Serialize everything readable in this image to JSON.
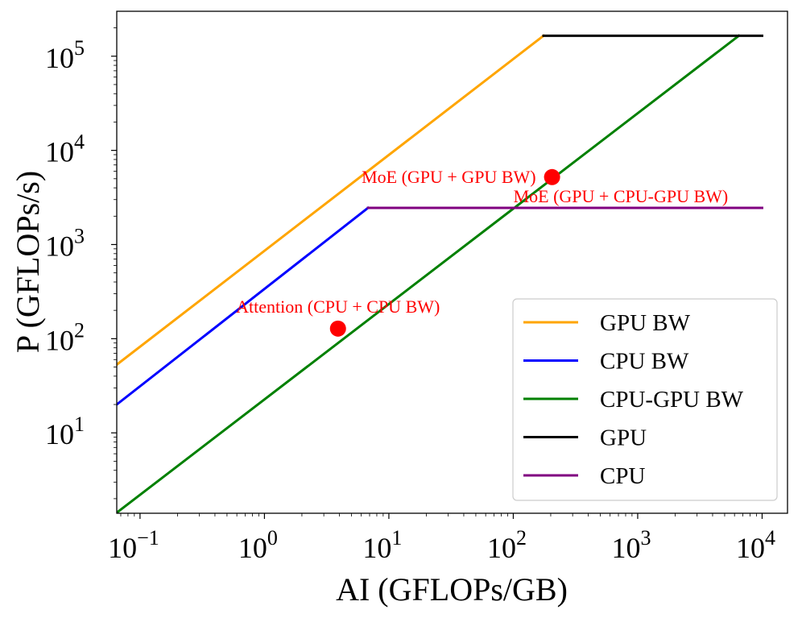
{
  "chart_data": {
    "type": "line",
    "x_scale": "log",
    "y_scale": "log",
    "xlabel": "AI (GFLOPs/GB)",
    "ylabel": "P (GFLOPs/s)",
    "xlim": [
      0.065,
      16000
    ],
    "ylim": [
      1.4,
      300000
    ],
    "x_ticks": [
      {
        "value": 0.1,
        "base": "10",
        "exp": "−1"
      },
      {
        "value": 1,
        "base": "10",
        "exp": "0"
      },
      {
        "value": 10,
        "base": "10",
        "exp": "1"
      },
      {
        "value": 100,
        "base": "10",
        "exp": "2"
      },
      {
        "value": 1000,
        "base": "10",
        "exp": "3"
      },
      {
        "value": 10000,
        "base": "10",
        "exp": "4"
      }
    ],
    "y_ticks": [
      {
        "value": 10,
        "base": "10",
        "exp": "1"
      },
      {
        "value": 100,
        "base": "10",
        "exp": "2"
      },
      {
        "value": 1000,
        "base": "10",
        "exp": "3"
      },
      {
        "value": 10000,
        "base": "10",
        "exp": "4"
      },
      {
        "value": 100000,
        "base": "10",
        "exp": "5"
      }
    ],
    "series": [
      {
        "name": "GPU BW",
        "color": "#ffa500",
        "points": [
          [
            0.065,
            53
          ],
          [
            175,
            165000
          ]
        ]
      },
      {
        "name": "CPU BW",
        "color": "#0000ff",
        "points": [
          [
            0.065,
            20
          ],
          [
            6.8,
            2450
          ]
        ]
      },
      {
        "name": "CPU-GPU BW",
        "color": "#008000",
        "points": [
          [
            0.065,
            1.42
          ],
          [
            6500,
            165000
          ]
        ]
      },
      {
        "name": "GPU",
        "color": "#000000",
        "points": [
          [
            175,
            165000
          ],
          [
            10000,
            165000
          ]
        ]
      },
      {
        "name": "CPU",
        "color": "#800080",
        "points": [
          [
            6.8,
            2450
          ],
          [
            10000,
            2450
          ]
        ]
      }
    ],
    "points": [
      {
        "label": "MoE (GPU + GPU BW)",
        "x": 205,
        "y": 5200,
        "color": "#ff0000",
        "label_anchor": "end",
        "label_pos": "left"
      },
      {
        "label": "MoE (GPU + CPU-GPU BW)",
        "x": 205,
        "y": 5200,
        "color": "#ff0000",
        "label_anchor": "start",
        "label_pos": "below-left"
      },
      {
        "label": "Attention (CPU + CPU BW)",
        "x": 3.9,
        "y": 128,
        "color": "#ff0000",
        "label_anchor": "middle",
        "label_pos": "above"
      }
    ],
    "legend": {
      "position": "lower right",
      "entries": [
        "GPU BW",
        "CPU BW",
        "CPU-GPU BW",
        "GPU",
        "CPU"
      ]
    },
    "grid": false
  }
}
